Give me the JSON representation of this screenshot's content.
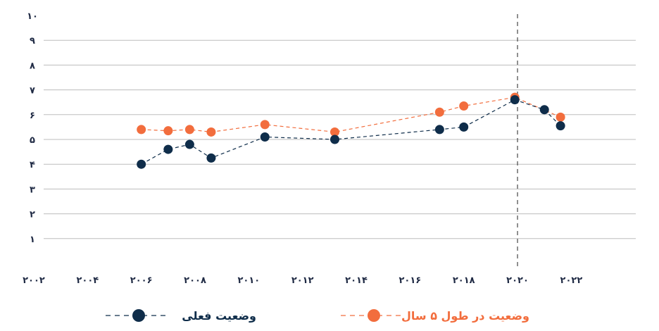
{
  "chart_data": {
    "type": "line",
    "x_ticks": [
      "۲۰۰۲",
      "۲۰۰۴",
      "۲۰۰۶",
      "۲۰۰۸",
      "۲۰۱۰",
      "۲۰۱۲",
      "۲۰۱۴",
      "۲۰۱۶",
      "۲۰۱۸",
      "۲۰۲۰",
      "۲۰۲۲"
    ],
    "y_ticks": [
      "۱",
      "۲",
      "۳",
      "۴",
      "۵",
      "۶",
      "۷",
      "۸",
      "۹",
      "۱۰"
    ],
    "xlim": [
      2002,
      2024.4
    ],
    "ylim": [
      0,
      10
    ],
    "grid": true,
    "reference_line_x": 2020,
    "legend_position": "bottom",
    "series": [
      {
        "name": "وضعیت فعلی",
        "color": "#0f2d4a",
        "x": [
          2006,
          2007,
          2007.8,
          2008.6,
          2010.6,
          2013.2,
          2017.1,
          2018,
          2019.9,
          2021,
          2021.6
        ],
        "values": [
          4.0,
          4.6,
          4.8,
          4.25,
          5.1,
          5.0,
          5.4,
          5.5,
          6.6,
          6.2,
          5.55
        ]
      },
      {
        "name": "وضعیت در طول ۵ سال",
        "color": "#f26d3d",
        "x": [
          2006,
          2007,
          2007.8,
          2008.6,
          2010.6,
          2013.2,
          2017.1,
          2018,
          2019.9,
          2021.6
        ],
        "values": [
          5.4,
          5.35,
          5.4,
          5.3,
          5.6,
          5.3,
          6.1,
          6.35,
          6.7,
          5.9
        ]
      }
    ]
  }
}
